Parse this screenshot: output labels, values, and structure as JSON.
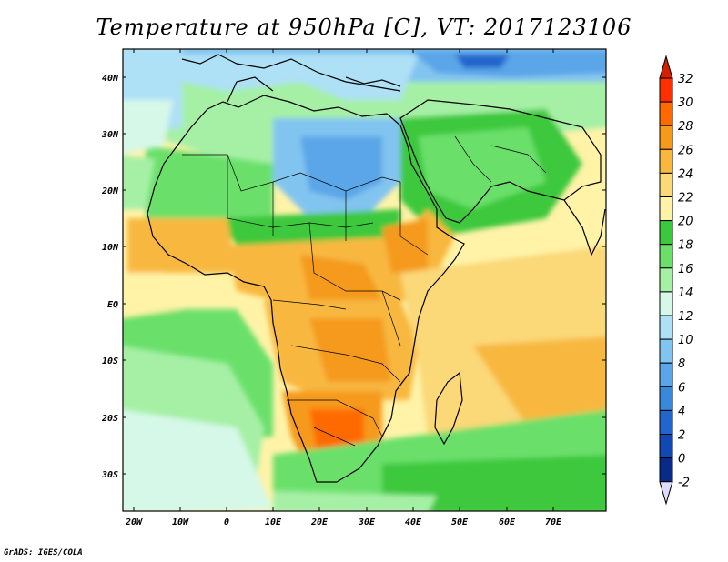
{
  "title": "Temperature at 950hPa [C], VT: 2017123106",
  "footer": "GrADS: IGES/COLA",
  "map": {
    "lon_range": [
      -23,
      80
    ],
    "lat_range": [
      -37,
      45
    ],
    "lat_ticks": [
      "40N",
      "30N",
      "20N",
      "10N",
      "EQ",
      "10S",
      "20S",
      "30S"
    ],
    "lon_ticks": [
      "20W",
      "10W",
      "0",
      "10E",
      "20E",
      "30E",
      "40E",
      "50E",
      "60E",
      "70E"
    ]
  },
  "colorbar": {
    "labels": [
      "32",
      "30",
      "28",
      "26",
      "24",
      "22",
      "20",
      "18",
      "16",
      "14",
      "12",
      "10",
      "8",
      "6",
      "4",
      "2",
      "0",
      "-2"
    ],
    "colors": {
      "above_32": "#d42000",
      "30_32": "#ff3000",
      "28_30": "#ff6a00",
      "26_28": "#f59a1a",
      "24_26": "#f8b840",
      "22_24": "#fbd878",
      "20_22": "#fff3a8",
      "18_20": "#3cc83c",
      "16_18": "#6ae06a",
      "14_16": "#a6f0a6",
      "12_14": "#d6f8e8",
      "10_12": "#aee0f6",
      "8_10": "#82c4f0",
      "6_8": "#5aa6e8",
      "4_6": "#3a88dc",
      "2_4": "#2066cc",
      "0_2": "#1248b4",
      "-2_0": "#0a2a8a",
      "below_-2": "#e0dcff"
    }
  }
}
